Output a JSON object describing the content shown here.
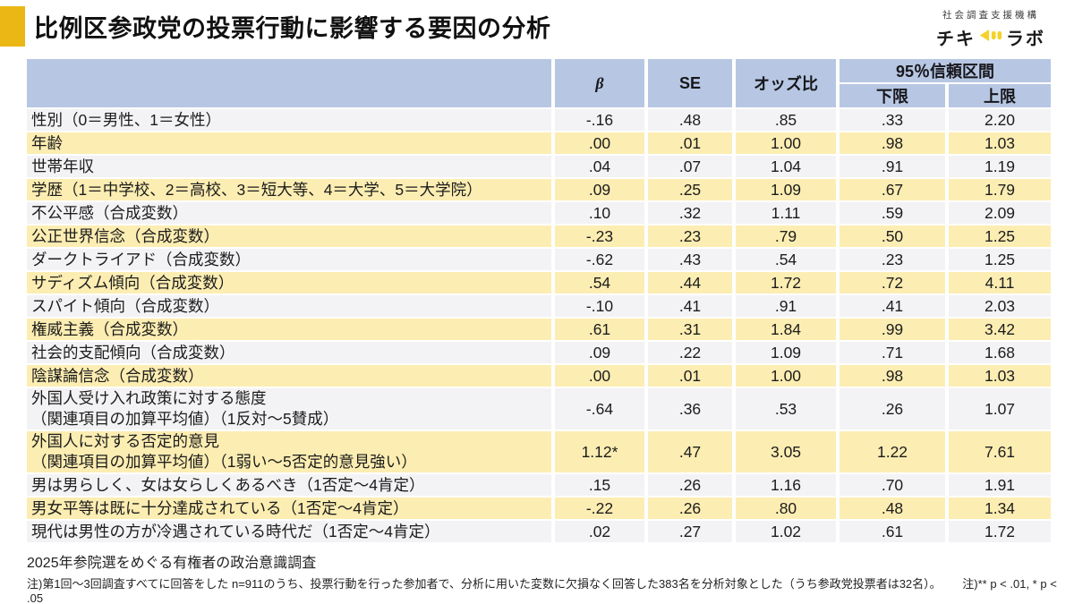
{
  "header": {
    "title": "比例区参政党の投票行動に影響する要因の分析",
    "accent_color": "#ebb714",
    "logo": {
      "org": "社会調査支援機構",
      "name_left": "チキ",
      "name_right": "ラボ",
      "icon_color": "#f4d22b"
    }
  },
  "colors": {
    "header_bg": "#b7c7e3",
    "row_yellow": "#fcedb2",
    "row_gray": "#f3f3f5"
  },
  "chart_data": {
    "type": "table",
    "title": "比例区参政党の投票行動に影響する要因の分析",
    "header": {
      "beta": "β",
      "se": "SE",
      "odds": "オッズ比",
      "ci": "95％信頼区間",
      "lower": "下限",
      "upper": "上限"
    },
    "rows": [
      {
        "label": "性別（0＝男性、1＝女性）",
        "beta": "-.16",
        "se": ".48",
        "odds": ".85",
        "lower": ".33",
        "upper": "2.20"
      },
      {
        "label": "年齢",
        "beta": ".00",
        "se": ".01",
        "odds": "1.00",
        "lower": ".98",
        "upper": "1.03"
      },
      {
        "label": "世帯年収",
        "beta": ".04",
        "se": ".07",
        "odds": "1.04",
        "lower": ".91",
        "upper": "1.19"
      },
      {
        "label": "学歴（1＝中学校、2＝高校、3＝短大等、4＝大学、5＝大学院）",
        "beta": ".09",
        "se": ".25",
        "odds": "1.09",
        "lower": ".67",
        "upper": "1.79"
      },
      {
        "label": "不公平感（合成変数）",
        "beta": ".10",
        "se": ".32",
        "odds": "1.11",
        "lower": ".59",
        "upper": "2.09"
      },
      {
        "label": "公正世界信念（合成変数）",
        "beta": "-.23",
        "se": ".23",
        "odds": ".79",
        "lower": ".50",
        "upper": "1.25"
      },
      {
        "label": "ダークトライアド（合成変数）",
        "beta": "-.62",
        "se": ".43",
        "odds": ".54",
        "lower": ".23",
        "upper": "1.25"
      },
      {
        "label": "サディズム傾向（合成変数）",
        "beta": ".54",
        "se": ".44",
        "odds": "1.72",
        "lower": ".72",
        "upper": "4.11"
      },
      {
        "label": "スパイト傾向（合成変数）",
        "beta": "-.10",
        "se": ".41",
        "odds": ".91",
        "lower": ".41",
        "upper": "2.03"
      },
      {
        "label": "権威主義（合成変数）",
        "beta": ".61",
        "se": ".31",
        "odds": "1.84",
        "lower": ".99",
        "upper": "3.42"
      },
      {
        "label": "社会的支配傾向（合成変数）",
        "beta": ".09",
        "se": ".22",
        "odds": "1.09",
        "lower": ".71",
        "upper": "1.68"
      },
      {
        "label": "陰謀論信念（合成変数）",
        "beta": ".00",
        "se": ".01",
        "odds": "1.00",
        "lower": ".98",
        "upper": "1.03"
      },
      {
        "label": "外国人受け入れ政策に対する態度",
        "label2": "（関連項目の加算平均値）（1反対～5賛成）",
        "beta": "-.64",
        "se": ".36",
        "odds": ".53",
        "lower": ".26",
        "upper": "1.07"
      },
      {
        "label": "外国人に対する否定的意見",
        "label2": "（関連項目の加算平均値）（1弱い～5否定的意見強い）",
        "beta": "1.12*",
        "se": ".47",
        "odds": "3.05",
        "lower": "1.22",
        "upper": "7.61"
      },
      {
        "label": "男は男らしく、女は女らしくあるべき（1否定～4肯定）",
        "beta": ".15",
        "se": ".26",
        "odds": "1.16",
        "lower": ".70",
        "upper": "1.91"
      },
      {
        "label": "男女平等は既に十分達成されている（1否定～4肯定）",
        "beta": "-.22",
        "se": ".26",
        "odds": ".80",
        "lower": ".48",
        "upper": "1.34"
      },
      {
        "label": "現代は男性の方が冷遇されている時代だ（1否定～4肯定）",
        "beta": ".02",
        "se": ".27",
        "odds": "1.02",
        "lower": ".61",
        "upper": "1.72"
      }
    ]
  },
  "footer": {
    "source": "2025年参院選をめぐる有権者の政治意識調査",
    "note": "注)第1回～3回調査すべてに回答をした n=911のうち、投票行動を行った参加者で、分析に用いた変数に欠損なく回答した383名を分析対象とした（うち参政党投票者は32名）。",
    "significance": "注)** p < .01, * p < .05"
  }
}
